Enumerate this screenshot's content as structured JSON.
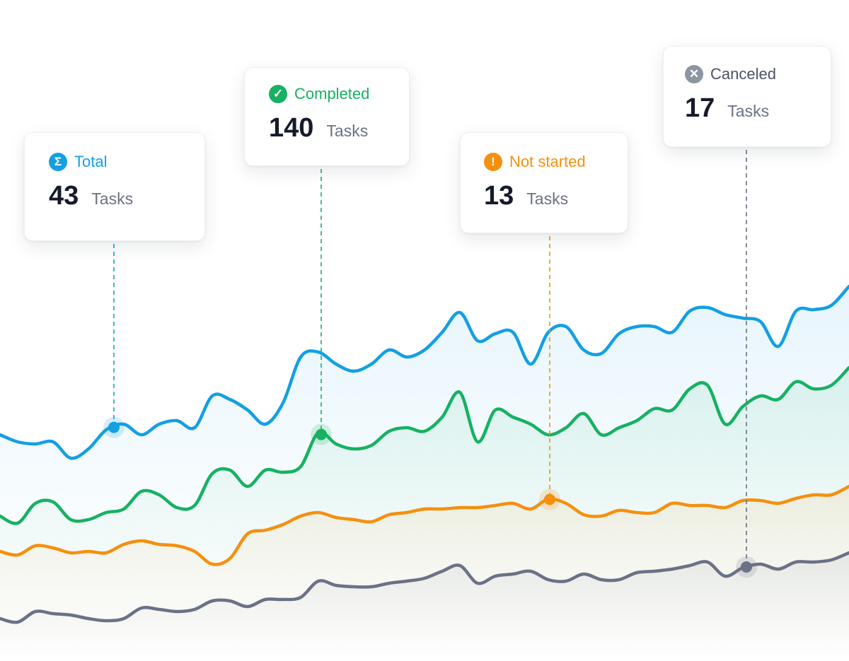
{
  "cards": [
    {
      "label": "Total",
      "value": "43",
      "unit": "Tasks",
      "icon": "sigma-icon",
      "color": "#139fe4"
    },
    {
      "label": "Completed",
      "value": "140",
      "unit": "Tasks",
      "icon": "check-circle-icon",
      "color": "#16b162"
    },
    {
      "label": "Not started",
      "value": "13",
      "unit": "Tasks",
      "icon": "exclamation-circle-icon",
      "color": "#f5900f"
    },
    {
      "label": "Canceled",
      "value": "17",
      "unit": "Tasks",
      "icon": "x-circle-icon",
      "color": "#8d94a3"
    }
  ],
  "chart_data": {
    "type": "line",
    "grid": false,
    "ylim": [
      0,
      93.5
    ],
    "xlim": [
      0,
      48
    ],
    "series": [
      {
        "color": "#139fe4",
        "values": [
          32.0,
          31.0,
          30.7,
          31.0,
          28.7,
          30.0,
          32.7,
          33.5,
          32.0,
          33.5,
          34.0,
          33.0,
          37.5,
          37.0,
          35.5,
          33.5,
          36.5,
          43.0,
          43.7,
          42.0,
          41.0,
          42.0,
          44.0,
          43.0,
          44.0,
          46.5,
          49.3,
          45.3,
          46.3,
          46.5,
          42.0,
          46.5,
          47.3,
          44.0,
          43.5,
          46.3,
          47.3,
          47.3,
          46.5,
          49.5,
          50.0,
          49.0,
          48.5,
          48.0,
          44.5,
          49.5,
          49.7,
          50.3,
          53.0
        ],
        "marker_x": 6.44
      },
      {
        "color": "#16b162",
        "values": [
          20.5,
          19.5,
          22.3,
          22.5,
          20.0,
          20.0,
          21.0,
          21.5,
          24.0,
          23.5,
          21.7,
          22.0,
          26.5,
          27.0,
          24.7,
          27.0,
          26.7,
          27.5,
          32.3,
          30.7,
          30.0,
          30.5,
          32.5,
          33.0,
          32.5,
          34.5,
          38.0,
          31.0,
          35.5,
          34.5,
          33.5,
          32.0,
          33.0,
          35.0,
          32.0,
          33.0,
          34.0,
          35.7,
          35.5,
          38.5,
          39.0,
          33.5,
          36.0,
          37.5,
          37.0,
          39.5,
          38.5,
          39.0,
          41.5
        ],
        "marker_x": 18.16
      },
      {
        "color": "#f5900f",
        "values": [
          15.5,
          15.0,
          16.3,
          16.0,
          15.3,
          15.5,
          15.3,
          16.5,
          17.0,
          16.5,
          16.3,
          15.5,
          13.7,
          14.5,
          18.0,
          18.5,
          19.3,
          20.5,
          21.0,
          20.3,
          20.0,
          19.7,
          20.7,
          21.0,
          21.5,
          21.5,
          21.7,
          21.7,
          22.0,
          22.3,
          21.5,
          22.9,
          22.3,
          20.7,
          20.5,
          21.3,
          21.0,
          21.0,
          22.3,
          22.0,
          22.0,
          21.7,
          22.7,
          22.7,
          22.3,
          23.0,
          23.5,
          23.5,
          24.7
        ],
        "marker_x": 31.08
      },
      {
        "color": "#6b7186",
        "values": [
          6.0,
          5.5,
          7.0,
          6.7,
          6.5,
          6.0,
          5.7,
          6.0,
          7.5,
          7.3,
          7.0,
          7.3,
          8.5,
          8.5,
          7.7,
          8.7,
          8.7,
          9.0,
          11.3,
          10.7,
          10.5,
          10.5,
          11.0,
          11.3,
          11.7,
          12.7,
          13.5,
          11.0,
          12.0,
          12.3,
          12.7,
          11.5,
          11.3,
          12.3,
          11.5,
          11.5,
          12.5,
          12.7,
          13.0,
          13.5,
          14.0,
          12.0,
          13.2,
          13.7,
          13.0,
          14.0,
          14.0,
          14.3,
          15.3
        ],
        "marker_x": 42.2
      }
    ]
  }
}
